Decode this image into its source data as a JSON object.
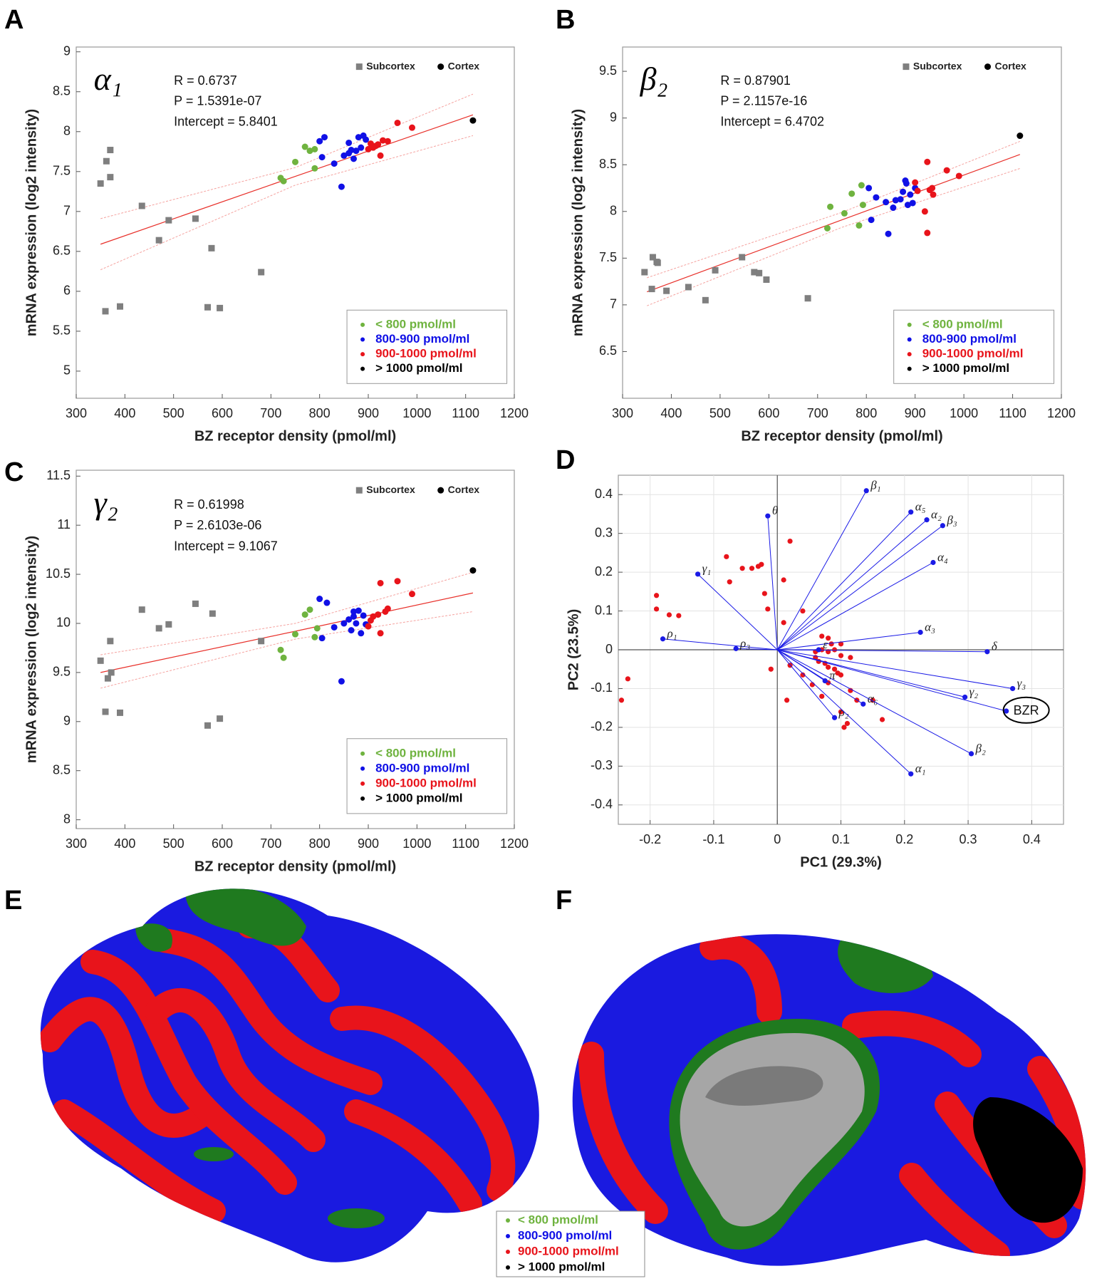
{
  "chart_data": [
    {
      "type": "scatter",
      "panel": "A",
      "symbol": "α₁",
      "annotations": [
        "R = 0.6737",
        "P = 1.5391e-07",
        "Intercept = 5.8401"
      ],
      "x_label": "BZ receptor density (pmol/ml)",
      "y_label": "mRNA expression (log2 intensity)",
      "xlim": [
        300,
        1200
      ],
      "xticks": [
        300,
        400,
        500,
        600,
        700,
        800,
        900,
        1000,
        1100,
        1200
      ],
      "ylim": [
        4.66,
        9.06
      ],
      "yticks": [
        5,
        5.5,
        6,
        6.5,
        7,
        7.5,
        8,
        8.5,
        9
      ],
      "series": [
        {
          "name": "Subcortex",
          "color": "#7f7f7f",
          "marker": "square",
          "legend": "top",
          "x": [
            350,
            362,
            370,
            370,
            435,
            490,
            470,
            545,
            578,
            360,
            390,
            570,
            595,
            680
          ],
          "y": [
            7.35,
            7.63,
            7.77,
            7.43,
            7.07,
            6.89,
            6.64,
            6.91,
            6.54,
            5.75,
            5.81,
            5.8,
            5.79,
            6.24
          ]
        },
        {
          "name": "< 800 pmol/ml",
          "color": "#6fb33f",
          "marker": "circle",
          "legend": "bottom",
          "x": [
            720,
            726,
            750,
            770,
            780,
            790,
            790
          ],
          "y": [
            7.42,
            7.38,
            7.62,
            7.81,
            7.76,
            7.78,
            7.54
          ]
        },
        {
          "name": "800-900 pmol/ml",
          "color": "#1010e6",
          "marker": "circle",
          "legend": "bottom",
          "x": [
            800,
            810,
            805,
            830,
            845,
            850,
            860,
            865,
            870,
            875,
            880,
            885,
            890,
            895,
            860
          ],
          "y": [
            7.88,
            7.93,
            7.68,
            7.6,
            7.31,
            7.7,
            7.86,
            7.77,
            7.66,
            7.76,
            7.93,
            7.8,
            7.95,
            7.9,
            7.73
          ]
        },
        {
          "name": "900-1000 pmol/ml",
          "color": "#e8141b",
          "marker": "circle",
          "legend": "bottom",
          "x": [
            900,
            905,
            915,
            920,
            925,
            930,
            940,
            960,
            990,
            910
          ],
          "y": [
            7.78,
            7.85,
            7.82,
            7.84,
            7.7,
            7.89,
            7.88,
            8.11,
            8.05,
            7.8
          ]
        },
        {
          "name": "> 1000 pmol/ml",
          "color": "#000000",
          "marker": "circle",
          "legend": "bottom",
          "x": [
            1115
          ],
          "y": [
            8.14
          ]
        }
      ],
      "extra_legend": [
        {
          "name": "Cortex",
          "color": "#000000",
          "marker": "circle"
        }
      ],
      "fit": {
        "color": "#e8302a",
        "x": [
          350,
          750,
          1115
        ],
        "y": [
          6.59,
          7.44,
          8.21
        ],
        "upper": [
          6.91,
          7.55,
          8.47
        ],
        "lower": [
          6.27,
          7.33,
          7.95
        ]
      }
    },
    {
      "type": "scatter",
      "panel": "B",
      "symbol": "β₂",
      "annotations": [
        "R = 0.87901",
        "P = 2.1157e-16",
        "Intercept = 6.4702"
      ],
      "x_label": "BZ receptor density (pmol/ml)",
      "y_label": "mRNA expression (log2 intensity)",
      "xlim": [
        300,
        1200
      ],
      "xticks": [
        300,
        400,
        500,
        600,
        700,
        800,
        900,
        1000,
        1100,
        1200
      ],
      "ylim": [
        6.0,
        9.76
      ],
      "yticks": [
        6.5,
        7,
        7.5,
        8,
        8.5,
        9,
        9.5
      ],
      "series": [
        {
          "name": "Subcortex",
          "color": "#7f7f7f",
          "marker": "square",
          "legend": "top",
          "x": [
            345,
            360,
            362,
            370,
            372,
            390,
            435,
            470,
            490,
            545,
            570,
            580,
            595,
            680
          ],
          "y": [
            7.35,
            7.17,
            7.51,
            7.46,
            7.45,
            7.15,
            7.19,
            7.05,
            7.37,
            7.51,
            7.35,
            7.34,
            7.27,
            7.07
          ]
        },
        {
          "name": "< 800 pmol/ml",
          "color": "#6fb33f",
          "marker": "circle",
          "legend": "bottom",
          "x": [
            720,
            726,
            755,
            770,
            785,
            790,
            793
          ],
          "y": [
            7.82,
            8.05,
            7.98,
            8.19,
            7.85,
            8.28,
            8.07
          ]
        },
        {
          "name": "800-900 pmol/ml",
          "color": "#1010e6",
          "marker": "circle",
          "legend": "bottom",
          "x": [
            805,
            810,
            820,
            840,
            845,
            855,
            860,
            870,
            875,
            880,
            882,
            885,
            890,
            895,
            900
          ],
          "y": [
            8.25,
            7.91,
            8.15,
            8.1,
            7.76,
            8.04,
            8.12,
            8.13,
            8.21,
            8.33,
            8.3,
            8.07,
            8.18,
            8.09,
            8.25
          ]
        },
        {
          "name": "900-1000 pmol/ml",
          "color": "#e8141b",
          "marker": "circle",
          "legend": "bottom",
          "x": [
            900,
            905,
            920,
            925,
            925,
            930,
            935,
            937,
            965,
            990
          ],
          "y": [
            8.31,
            8.22,
            8.0,
            7.77,
            8.53,
            8.23,
            8.25,
            8.18,
            8.44,
            8.38
          ]
        },
        {
          "name": "> 1000 pmol/ml",
          "color": "#000000",
          "marker": "circle",
          "legend": "bottom",
          "x": [
            1115
          ],
          "y": [
            8.81
          ]
        }
      ],
      "extra_legend": [
        {
          "name": "Cortex",
          "color": "#000000",
          "marker": "circle"
        }
      ],
      "fit": {
        "color": "#e8302a",
        "x": [
          350,
          750,
          1115
        ],
        "y": [
          7.14,
          7.91,
          8.61
        ],
        "upper": [
          7.29,
          7.99,
          8.75
        ],
        "lower": [
          6.99,
          7.83,
          8.46
        ]
      }
    },
    {
      "type": "scatter",
      "panel": "C",
      "symbol": "γ₂",
      "annotations": [
        "R = 0.61998",
        "P = 2.6103e-06",
        "Intercept = 9.1067"
      ],
      "x_label": "BZ receptor density (pmol/ml)",
      "y_label": "mRNA expression (log2 intensity)",
      "xlim": [
        300,
        1200
      ],
      "xticks": [
        300,
        400,
        500,
        600,
        700,
        800,
        900,
        1000,
        1100,
        1200
      ],
      "ylim": [
        7.91,
        11.56
      ],
      "yticks": [
        8,
        8.5,
        9,
        9.5,
        10,
        10.5,
        11,
        11.5
      ],
      "series": [
        {
          "name": "Subcortex",
          "color": "#7f7f7f",
          "marker": "square",
          "legend": "top",
          "x": [
            350,
            360,
            365,
            370,
            372,
            390,
            435,
            470,
            490,
            545,
            570,
            580,
            595,
            680
          ],
          "y": [
            9.62,
            9.1,
            9.44,
            9.82,
            9.5,
            9.09,
            10.14,
            9.95,
            9.99,
            10.2,
            8.96,
            10.1,
            9.03,
            9.82
          ]
        },
        {
          "name": "< 800 pmol/ml",
          "color": "#6fb33f",
          "marker": "circle",
          "legend": "bottom",
          "x": [
            720,
            726,
            750,
            770,
            780,
            790,
            795
          ],
          "y": [
            9.73,
            9.65,
            9.89,
            10.09,
            10.14,
            9.86,
            9.95
          ]
        },
        {
          "name": "800-900 pmol/ml",
          "color": "#1010e6",
          "marker": "circle",
          "legend": "bottom",
          "x": [
            800,
            805,
            815,
            830,
            845,
            850,
            860,
            865,
            870,
            875,
            880,
            885,
            890,
            895,
            870
          ],
          "y": [
            10.25,
            9.85,
            10.21,
            9.96,
            9.41,
            10.0,
            10.04,
            9.93,
            10.07,
            10.0,
            10.13,
            9.9,
            10.08,
            9.99,
            10.12
          ]
        },
        {
          "name": "900-1000 pmol/ml",
          "color": "#e8141b",
          "marker": "circle",
          "legend": "bottom",
          "x": [
            900,
            910,
            920,
            925,
            925,
            935,
            940,
            960,
            990,
            905
          ],
          "y": [
            9.97,
            10.07,
            10.09,
            9.9,
            10.41,
            10.12,
            10.15,
            10.43,
            10.3,
            10.03
          ]
        },
        {
          "name": "> 1000 pmol/ml",
          "color": "#000000",
          "marker": "circle",
          "legend": "bottom",
          "x": [
            1115
          ],
          "y": [
            10.54
          ]
        }
      ],
      "extra_legend": [
        {
          "name": "Cortex",
          "color": "#000000",
          "marker": "circle"
        }
      ],
      "fit": {
        "color": "#e8302a",
        "x": [
          350,
          750,
          1115
        ],
        "y": [
          9.5,
          9.92,
          10.31
        ],
        "upper": [
          9.68,
          10.0,
          10.52
        ],
        "lower": [
          9.34,
          9.84,
          10.12
        ]
      }
    },
    {
      "type": "biplot",
      "panel": "D",
      "x_label": "PC1 (29.3%)",
      "y_label": "PC2 (23.5%)",
      "xlim": [
        -0.25,
        0.45
      ],
      "xticks": [
        -0.2,
        -0.1,
        0,
        0.1,
        0.2,
        0.3,
        0.4
      ],
      "ylim": [
        -0.45,
        0.45
      ],
      "yticks": [
        -0.4,
        -0.3,
        -0.2,
        -0.1,
        0,
        0.1,
        0.2,
        0.3,
        0.4
      ],
      "grid": true,
      "loadings": {
        "color": "#1a1ae6",
        "labels": [
          "β₁",
          "α₅",
          "α₂",
          "β₃",
          "α₄",
          "θ",
          "γ₁",
          "α₃",
          "δ",
          "ρ₁",
          "ρ₃",
          "γ₃",
          "γ₂",
          "BZR",
          "α₆",
          "ρ₂",
          "β₂",
          "α₁",
          "ε",
          "π"
        ],
        "x": [
          0.14,
          0.21,
          0.235,
          0.26,
          0.245,
          -0.015,
          -0.125,
          0.225,
          0.33,
          -0.18,
          -0.065,
          0.37,
          0.295,
          0.36,
          0.135,
          0.09,
          0.305,
          0.21,
          0.065,
          0.075
        ],
        "y": [
          0.41,
          0.355,
          0.335,
          0.32,
          0.225,
          0.345,
          0.195,
          0.045,
          -0.005,
          0.028,
          0.003,
          -0.1,
          -0.122,
          -0.158,
          -0.14,
          -0.175,
          -0.268,
          -0.32,
          0.0,
          -0.08
        ]
      },
      "circled_index": 13,
      "scores": {
        "color": "#e8141b",
        "x": [
          -0.19,
          -0.19,
          -0.17,
          -0.155,
          -0.08,
          -0.075,
          -0.055,
          -0.04,
          -0.03,
          -0.025,
          -0.015,
          0.02,
          0.01,
          0.01,
          -0.02,
          -0.245,
          -0.235,
          -0.01,
          0.015,
          0.04,
          0.06,
          0.07,
          0.08,
          0.085,
          0.09,
          0.1,
          0.115,
          0.06,
          0.065,
          0.075,
          0.08,
          0.09,
          0.095,
          0.1,
          0.055,
          0.07,
          0.08,
          0.1,
          0.105,
          0.11,
          0.125,
          0.15,
          0.165,
          0.115,
          0.08,
          0.1,
          0.02,
          0.04,
          0.07
        ],
        "y": [
          0.14,
          0.105,
          0.09,
          0.088,
          0.24,
          0.175,
          0.21,
          0.21,
          0.215,
          0.22,
          0.105,
          0.28,
          0.18,
          0.07,
          0.145,
          -0.13,
          -0.075,
          -0.05,
          -0.13,
          0.1,
          -0.005,
          0.035,
          0.03,
          0.015,
          0.0,
          -0.015,
          -0.02,
          -0.02,
          -0.03,
          -0.035,
          -0.045,
          -0.05,
          -0.06,
          -0.065,
          -0.09,
          -0.12,
          -0.085,
          -0.16,
          -0.2,
          -0.19,
          -0.13,
          -0.13,
          -0.18,
          -0.105,
          -0.005,
          0.015,
          -0.04,
          -0.065,
          0.0
        ]
      }
    }
  ],
  "brain_panels": {
    "labels": [
      "E",
      "F"
    ],
    "legend": [
      {
        "name": "< 800 pmol/ml",
        "color": "#6fb33f"
      },
      {
        "name": "800-900 pmol/ml",
        "color": "#1010e6"
      },
      {
        "name": "900-1000 pmol/ml",
        "color": "#e8141b"
      },
      {
        "name": "> 1000 pmol/ml",
        "color": "#000000"
      }
    ]
  }
}
